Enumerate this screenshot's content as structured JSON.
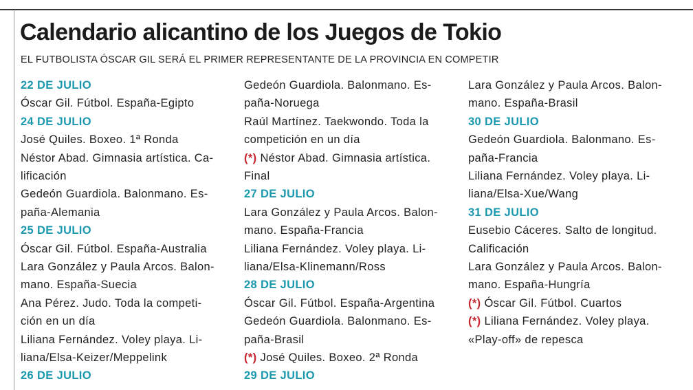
{
  "header": {
    "title": "Calendario alicantino de los Juegos de Tokio",
    "subtitle": "EL FUTBOLISTA ÓSCAR GIL SERÁ EL PRIMER REPRESENTANTE DE LA PROVINCIA EN COMPETIR"
  },
  "columns": [
    [
      {
        "date": "22 DE JULIO"
      },
      {
        "text": "Óscar Gil. Fútbol. España-Egipto"
      },
      {
        "date": "24 DE JULIO"
      },
      {
        "text": "José Quiles. Boxeo. 1ª Ronda"
      },
      {
        "text": "Néstor Abad. Gimnasia artística. Ca-"
      },
      {
        "text": "lificación"
      },
      {
        "text": "Gedeón Guardiola. Balonmano. Es-"
      },
      {
        "text": "paña-Alemania"
      },
      {
        "date": "25 DE JULIO"
      },
      {
        "text": "Óscar Gil. Fútbol. España-Australia"
      },
      {
        "text": "Lara González y Paula Arcos. Balon-"
      },
      {
        "text": "mano. España-Suecia"
      },
      {
        "text": "Ana Pérez. Judo. Toda la competi-"
      },
      {
        "text": "ción en un día"
      },
      {
        "text": "Liliana Fernández. Voley playa. Li-"
      },
      {
        "text": "liana/Elsa-Keizer/Meppelink"
      },
      {
        "date": "26 DE JULIO"
      }
    ],
    [
      {
        "text": "Gedeón Guardiola. Balonmano. Es-"
      },
      {
        "text": "paña-Noruega"
      },
      {
        "text": "Raúl Martínez. Taekwondo. Toda la"
      },
      {
        "text": "competición en un día"
      },
      {
        "mark": "(*)",
        "text": "Néstor Abad. Gimnasia artística."
      },
      {
        "text": "Final"
      },
      {
        "date": "27 DE JULIO"
      },
      {
        "text": "Lara González y Paula Arcos. Balon-"
      },
      {
        "text": "mano. España-Francia"
      },
      {
        "text": "Liliana Fernández. Voley playa. Li-"
      },
      {
        "text": "liana/Elsa-Klinemann/Ross"
      },
      {
        "date": "28 DE JULIO"
      },
      {
        "text": "Óscar Gil. Fútbol. España-Argentina"
      },
      {
        "text": "Gedeón Guardiola. Balonmano. Es-"
      },
      {
        "text": "paña-Brasil"
      },
      {
        "mark": "(*)",
        "text": "José Quiles. Boxeo. 2ª Ronda"
      },
      {
        "date": "29 DE JULIO"
      }
    ],
    [
      {
        "text": "Lara González y Paula Arcos. Balon-"
      },
      {
        "text": "mano. España-Brasil"
      },
      {
        "date": "30 DE JULIO"
      },
      {
        "text": "Gedeón Guardiola. Balonmano. Es-"
      },
      {
        "text": "paña-Francia"
      },
      {
        "text": "Liliana Fernández. Voley playa. Li-"
      },
      {
        "text": "liana/Elsa-Xue/Wang"
      },
      {
        "date": "31 DE JULIO"
      },
      {
        "text": "Eusebio Cáceres. Salto de longitud."
      },
      {
        "text": "Calificación"
      },
      {
        "text": "Lara González y Paula Arcos. Balon-"
      },
      {
        "text": "mano. España-Hungría"
      },
      {
        "mark": "(*)",
        "text": "Óscar Gil. Fútbol. Cuartos"
      },
      {
        "mark": "(*)",
        "text": "Liliana Fernández. Voley playa."
      },
      {
        "text": "«Play-off» de repesca"
      }
    ]
  ]
}
